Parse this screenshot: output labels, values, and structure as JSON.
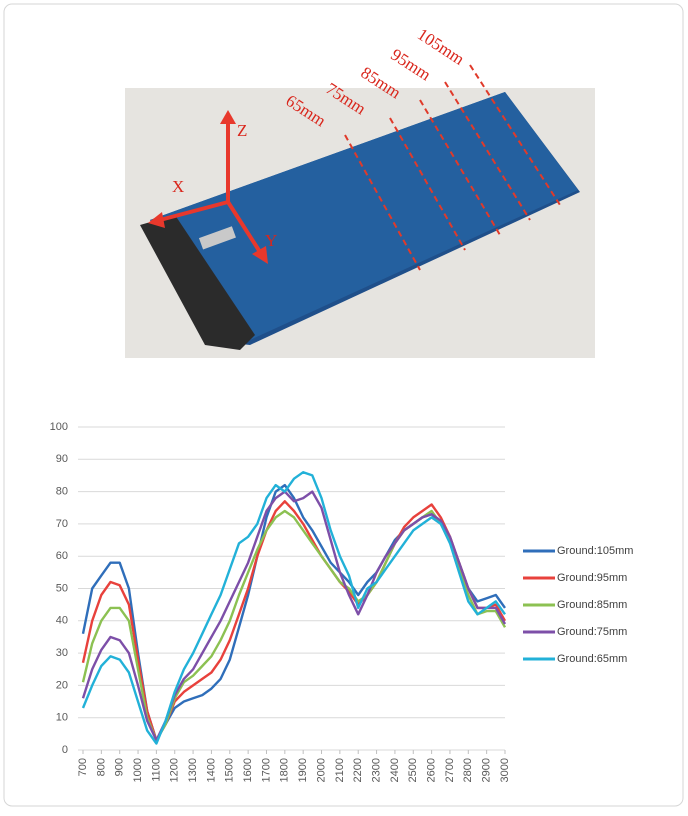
{
  "photo": {
    "distance_labels": [
      "105mm",
      "95mm",
      "85mm",
      "75mm",
      "65mm"
    ],
    "axis_labels": [
      "Z",
      "X",
      "Y"
    ]
  },
  "chart_data": {
    "type": "line",
    "x": [
      700,
      750,
      800,
      850,
      900,
      950,
      1000,
      1050,
      1100,
      1150,
      1200,
      1250,
      1300,
      1350,
      1400,
      1450,
      1500,
      1550,
      1600,
      1650,
      1700,
      1750,
      1800,
      1850,
      1900,
      1950,
      2000,
      2050,
      2100,
      2150,
      2200,
      2250,
      2300,
      2350,
      2400,
      2450,
      2500,
      2550,
      2600,
      2650,
      2700,
      2750,
      2800,
      2850,
      2900,
      2950,
      3000
    ],
    "xlim": [
      700,
      3000
    ],
    "xticks": [
      700,
      800,
      900,
      1000,
      1100,
      1200,
      1300,
      1400,
      1500,
      1600,
      1700,
      1800,
      1900,
      2000,
      2100,
      2200,
      2300,
      2400,
      2500,
      2600,
      2700,
      2800,
      2900,
      3000
    ],
    "ylim": [
      0,
      100
    ],
    "yticks": [
      0,
      10,
      20,
      30,
      40,
      50,
      60,
      70,
      80,
      90,
      100
    ],
    "grid": true,
    "legend": "right",
    "series": [
      {
        "name": "Ground:105mm",
        "color": "#2f6eba",
        "values": [
          36,
          50,
          54,
          58,
          58,
          50,
          30,
          12,
          3,
          8,
          13,
          15,
          16,
          17,
          19,
          22,
          28,
          38,
          48,
          60,
          72,
          80,
          82,
          78,
          72,
          68,
          63,
          58,
          55,
          52,
          48,
          52,
          55,
          60,
          65,
          68,
          70,
          72,
          73,
          70,
          65,
          58,
          50,
          46,
          47,
          48,
          44
        ]
      },
      {
        "name": "Ground:95mm",
        "color": "#e8413c",
        "values": [
          27,
          40,
          48,
          52,
          51,
          45,
          28,
          12,
          3,
          8,
          15,
          18,
          20,
          22,
          24,
          28,
          34,
          42,
          50,
          60,
          68,
          74,
          77,
          74,
          70,
          65,
          60,
          56,
          52,
          49,
          45,
          48,
          52,
          58,
          64,
          69,
          72,
          74,
          76,
          72,
          66,
          58,
          50,
          44,
          44,
          45,
          40
        ]
      },
      {
        "name": "Ground:85mm",
        "color": "#8cc152",
        "values": [
          21,
          33,
          40,
          44,
          44,
          40,
          25,
          10,
          3,
          8,
          16,
          21,
          23,
          26,
          29,
          34,
          40,
          48,
          55,
          62,
          68,
          72,
          74,
          72,
          68,
          64,
          60,
          56,
          52,
          50,
          46,
          48,
          52,
          58,
          64,
          68,
          70,
          72,
          74,
          70,
          65,
          56,
          48,
          42,
          43,
          43,
          38
        ]
      },
      {
        "name": "Ground:75mm",
        "color": "#7d4fa8",
        "values": [
          16,
          25,
          31,
          35,
          34,
          30,
          20,
          9,
          3,
          9,
          17,
          22,
          25,
          30,
          35,
          40,
          46,
          52,
          58,
          66,
          74,
          78,
          80,
          77,
          78,
          80,
          75,
          65,
          55,
          48,
          42,
          48,
          55,
          60,
          64,
          68,
          70,
          72,
          73,
          71,
          66,
          58,
          50,
          44,
          44,
          44,
          39
        ]
      },
      {
        "name": "Ground:65mm",
        "color": "#22b1d8",
        "values": [
          13,
          20,
          26,
          29,
          28,
          24,
          15,
          6,
          2,
          9,
          18,
          25,
          30,
          36,
          42,
          48,
          56,
          64,
          66,
          70,
          78,
          82,
          80,
          84,
          86,
          85,
          78,
          68,
          60,
          54,
          44,
          50,
          52,
          56,
          60,
          64,
          68,
          70,
          72,
          70,
          64,
          55,
          46,
          42,
          44,
          46,
          42
        ]
      }
    ]
  }
}
